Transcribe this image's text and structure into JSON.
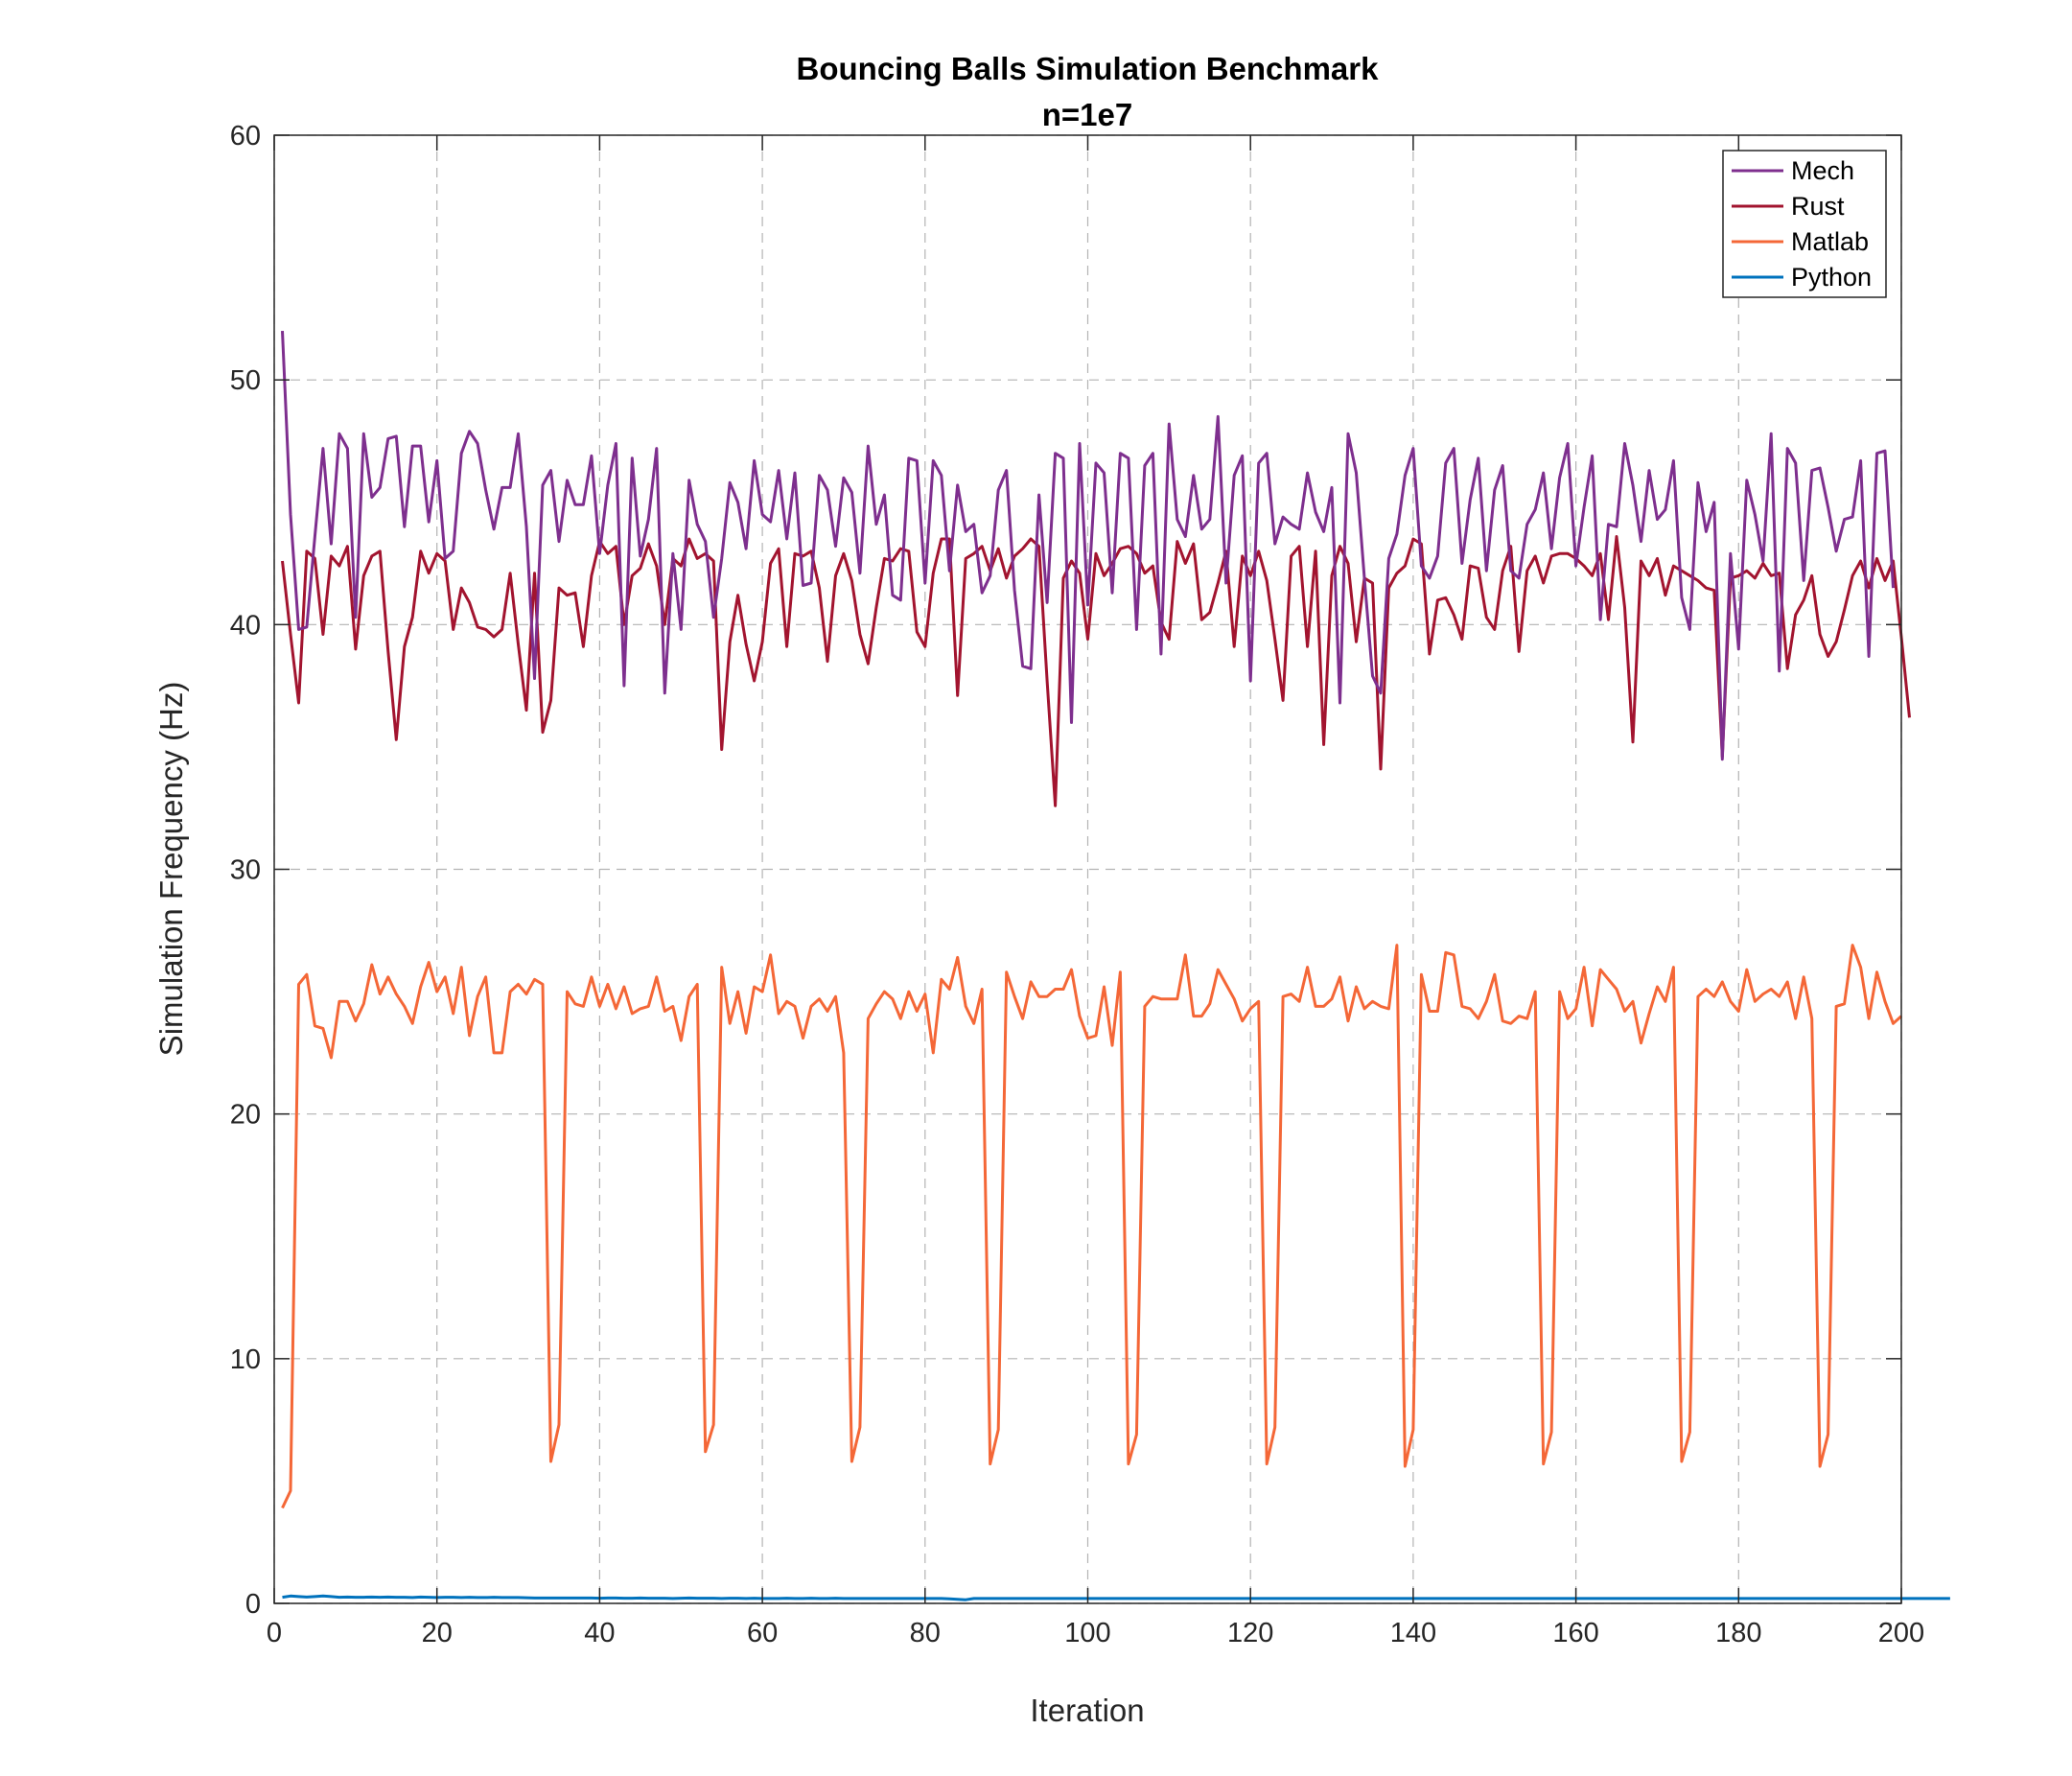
{
  "chart_data": {
    "type": "line",
    "title": "Bouncing Balls Simulation Benchmark",
    "subtitle": "n=1e7",
    "xlabel": "Iteration",
    "ylabel": "Simulation Frequency (Hz)",
    "xlim": [
      0,
      200
    ],
    "ylim": [
      0,
      60
    ],
    "xticks": [
      0,
      20,
      40,
      60,
      80,
      100,
      120,
      140,
      160,
      180,
      200
    ],
    "yticks": [
      0,
      10,
      20,
      30,
      40,
      50,
      60
    ],
    "grid": true,
    "legend_position": "top-right",
    "series": [
      {
        "name": "Mech",
        "color": "#7E2F8E",
        "values": [
          52.0,
          44.5,
          39.8,
          39.9,
          43.6,
          47.2,
          43.3,
          47.8,
          47.2,
          40.3,
          47.8,
          45.2,
          45.6,
          47.6,
          47.7,
          44.0,
          47.3,
          47.3,
          44.2,
          46.7,
          42.7,
          43.0,
          47.0,
          47.9,
          47.4,
          45.5,
          43.9,
          45.6,
          45.6,
          47.8,
          44.0,
          37.8,
          45.7,
          46.3,
          43.4,
          45.9,
          44.9,
          44.9,
          46.9,
          42.9,
          45.7,
          47.4,
          37.5,
          46.8,
          42.8,
          44.3,
          47.2,
          37.2,
          42.9,
          39.8,
          45.9,
          44.1,
          43.4,
          40.3,
          42.7,
          45.8,
          45.0,
          43.1,
          46.7,
          44.5,
          44.2,
          46.3,
          43.5,
          46.2,
          41.6,
          41.7,
          46.1,
          45.5,
          43.2,
          46.0,
          45.4,
          42.1,
          47.3,
          44.1,
          45.3,
          41.2,
          41.0,
          46.8,
          46.7,
          41.7,
          46.7,
          46.1,
          42.2,
          45.7,
          43.8,
          44.1,
          41.3,
          42.0,
          45.5,
          46.3,
          41.4,
          38.3,
          38.2,
          45.3,
          40.9,
          47.0,
          46.8,
          36.0,
          47.4,
          40.8,
          46.6,
          46.2,
          41.3,
          47.0,
          46.8,
          39.8,
          46.5,
          47.0,
          38.8,
          48.2,
          44.3,
          43.6,
          46.1,
          43.9,
          44.3,
          48.5,
          41.7,
          46.1,
          46.9,
          37.7,
          46.6,
          47.0,
          43.3,
          44.4,
          44.1,
          43.9,
          46.2,
          44.6,
          43.8,
          45.6,
          36.8,
          47.8,
          46.2,
          41.9,
          37.9,
          37.2,
          42.7,
          43.7,
          46.1,
          47.2,
          42.4,
          41.9,
          42.8,
          46.6,
          47.2,
          42.5,
          45.1,
          46.8,
          42.2,
          45.5,
          46.5,
          42.2,
          41.9,
          44.1,
          44.7,
          46.2,
          43.1,
          46.0,
          47.4,
          42.4,
          44.8,
          46.9,
          40.2,
          44.1,
          44.0,
          47.4,
          45.7,
          43.4,
          46.3,
          44.3,
          44.7,
          46.7,
          41.1,
          39.8,
          45.8,
          43.8,
          45.0,
          34.5,
          42.9,
          39.0,
          45.9,
          44.5,
          42.6,
          47.8,
          38.1,
          47.2,
          46.6,
          41.8,
          46.3,
          46.4,
          44.8,
          43.0,
          44.3,
          44.4,
          46.7,
          38.7,
          47.0,
          47.1,
          41.5
        ]
      },
      {
        "name": "Rust",
        "color": "#A2142F",
        "values": [
          42.6,
          39.6,
          36.8,
          43.0,
          42.7,
          39.6,
          42.8,
          42.4,
          43.2,
          39.0,
          42.0,
          42.8,
          43.0,
          38.9,
          35.3,
          39.1,
          40.3,
          43.0,
          42.1,
          42.9,
          42.6,
          39.8,
          41.5,
          40.9,
          39.9,
          39.8,
          39.5,
          39.8,
          42.1,
          39.2,
          36.5,
          42.1,
          35.6,
          36.9,
          41.5,
          41.2,
          41.3,
          39.1,
          42.0,
          43.4,
          42.9,
          43.2,
          40.0,
          42.0,
          42.3,
          43.3,
          42.4,
          40.0,
          42.7,
          42.4,
          43.5,
          42.7,
          42.9,
          42.6,
          34.9,
          39.3,
          41.2,
          39.2,
          37.7,
          39.3,
          42.5,
          43.1,
          39.1,
          42.9,
          42.8,
          43.0,
          41.5,
          38.5,
          42.0,
          42.9,
          41.8,
          39.6,
          38.4,
          40.7,
          42.7,
          42.6,
          43.1,
          43.0,
          39.7,
          39.1,
          42.1,
          43.5,
          43.5,
          37.1,
          42.7,
          42.9,
          43.2,
          42.2,
          43.1,
          41.9,
          42.8,
          43.1,
          43.5,
          43.2,
          37.7,
          32.6,
          41.9,
          42.6,
          42.1,
          39.4,
          42.9,
          42.0,
          42.5,
          43.1,
          43.2,
          42.9,
          42.1,
          42.4,
          40.1,
          39.4,
          43.4,
          42.5,
          43.3,
          40.2,
          40.5,
          41.7,
          43.0,
          39.1,
          42.8,
          42.0,
          43.0,
          41.8,
          39.4,
          36.9,
          42.8,
          43.2,
          39.1,
          43.0,
          35.1,
          42.0,
          43.2,
          42.5,
          39.3,
          41.9,
          41.7,
          34.1,
          41.5,
          42.1,
          42.4,
          43.5,
          43.3,
          38.8,
          41.0,
          41.1,
          40.4,
          39.4,
          42.4,
          42.3,
          40.3,
          39.8,
          42.2,
          43.2,
          38.9,
          42.2,
          42.8,
          41.7,
          42.8,
          42.9,
          42.9,
          42.7,
          42.4,
          42.0,
          42.9,
          40.2,
          43.6,
          40.7,
          35.2,
          42.6,
          42.0,
          42.7,
          41.2,
          42.4,
          42.2,
          42.0,
          41.8,
          41.5,
          41.4,
          34.6,
          41.9,
          42.0,
          42.2,
          41.9,
          42.5,
          42.0,
          42.1,
          38.2,
          40.4,
          41.0,
          42.0,
          39.6,
          38.7,
          39.3,
          40.6,
          42.0,
          42.6,
          41.5,
          42.7,
          41.8,
          42.6,
          39.5,
          36.2
        ]
      },
      {
        "name": "Matlab",
        "color": "#F46737",
        "values": [
          3.9,
          4.6,
          25.3,
          25.7,
          23.6,
          23.5,
          22.3,
          24.6,
          24.6,
          23.8,
          24.5,
          26.1,
          24.9,
          25.6,
          24.9,
          24.4,
          23.7,
          25.2,
          26.2,
          25.0,
          25.6,
          24.1,
          26.0,
          23.2,
          24.8,
          25.6,
          22.5,
          22.5,
          25.0,
          25.3,
          24.9,
          25.5,
          25.3,
          5.8,
          7.3,
          25.0,
          24.5,
          24.4,
          25.6,
          24.4,
          25.3,
          24.3,
          25.2,
          24.1,
          24.3,
          24.4,
          25.6,
          24.2,
          24.4,
          23.0,
          24.8,
          25.3,
          6.2,
          7.3,
          26.0,
          23.7,
          25.0,
          23.3,
          25.2,
          25.0,
          26.5,
          24.1,
          24.6,
          24.4,
          23.1,
          24.4,
          24.7,
          24.2,
          24.8,
          22.5,
          5.8,
          7.2,
          23.9,
          24.5,
          25.0,
          24.7,
          23.9,
          25.0,
          24.2,
          24.9,
          22.5,
          25.5,
          25.1,
          26.4,
          24.4,
          23.7,
          25.1,
          5.7,
          7.1,
          25.8,
          24.8,
          23.9,
          25.4,
          24.8,
          24.8,
          25.1,
          25.1,
          25.9,
          24.0,
          23.1,
          23.2,
          25.2,
          22.8,
          25.8,
          5.7,
          6.9,
          24.4,
          24.8,
          24.7,
          24.7,
          24.7,
          26.5,
          24.0,
          24.0,
          24.5,
          25.9,
          25.3,
          24.7,
          23.8,
          24.3,
          24.6,
          5.7,
          7.2,
          24.8,
          24.9,
          24.6,
          26.0,
          24.4,
          24.4,
          24.7,
          25.6,
          23.8,
          25.2,
          24.3,
          24.6,
          24.4,
          24.3,
          26.9,
          5.6,
          7.1,
          25.7,
          24.2,
          24.2,
          26.6,
          26.5,
          24.4,
          24.3,
          23.9,
          24.6,
          25.7,
          23.8,
          23.7,
          24.0,
          23.9,
          25.0,
          5.7,
          7.0,
          25.0,
          23.9,
          24.3,
          26.0,
          23.6,
          25.9,
          25.5,
          25.1,
          24.2,
          24.6,
          22.9,
          24.1,
          25.2,
          24.6,
          26.0,
          5.8,
          7.0,
          24.8,
          25.1,
          24.8,
          25.4,
          24.6,
          24.2,
          25.9,
          24.6,
          24.9,
          25.1,
          24.8,
          25.4,
          23.9,
          25.6,
          23.9,
          5.6,
          6.9,
          24.4,
          24.5,
          26.9,
          26.0,
          23.9,
          25.8,
          24.6,
          23.7,
          24.0
        ]
      },
      {
        "name": "Python",
        "color": "#0072BD",
        "values": [
          0.25,
          0.3,
          0.28,
          0.26,
          0.28,
          0.3,
          0.28,
          0.25,
          0.26,
          0.25,
          0.25,
          0.26,
          0.25,
          0.26,
          0.25,
          0.25,
          0.24,
          0.26,
          0.25,
          0.24,
          0.25,
          0.25,
          0.24,
          0.25,
          0.24,
          0.24,
          0.25,
          0.24,
          0.24,
          0.24,
          0.23,
          0.22,
          0.22,
          0.22,
          0.22,
          0.22,
          0.22,
          0.22,
          0.22,
          0.21,
          0.22,
          0.22,
          0.21,
          0.21,
          0.22,
          0.21,
          0.21,
          0.21,
          0.2,
          0.21,
          0.22,
          0.21,
          0.21,
          0.21,
          0.2,
          0.21,
          0.21,
          0.2,
          0.21,
          0.2,
          0.2,
          0.2,
          0.21,
          0.2,
          0.2,
          0.21,
          0.2,
          0.2,
          0.21,
          0.2,
          0.2,
          0.2,
          0.2,
          0.2,
          0.2,
          0.2,
          0.2,
          0.2,
          0.2,
          0.2,
          0.2,
          0.2,
          0.19,
          0.17,
          0.15,
          0.2,
          0.2,
          0.2,
          0.2,
          0.2,
          0.2,
          0.2,
          0.2,
          0.2,
          0.2,
          0.2,
          0.2,
          0.2,
          0.2,
          0.2,
          0.2,
          0.2,
          0.2,
          0.2,
          0.2,
          0.2,
          0.2,
          0.2,
          0.2,
          0.2,
          0.2,
          0.2,
          0.2,
          0.2,
          0.2,
          0.2,
          0.2,
          0.2,
          0.2,
          0.2,
          0.2,
          0.2,
          0.2,
          0.2,
          0.2,
          0.2,
          0.2,
          0.2,
          0.2,
          0.2,
          0.2,
          0.2,
          0.2,
          0.2,
          0.2,
          0.2,
          0.2,
          0.2,
          0.2,
          0.2,
          0.2,
          0.2,
          0.2,
          0.2,
          0.2,
          0.2,
          0.2,
          0.2,
          0.2,
          0.2,
          0.2,
          0.2,
          0.2,
          0.2,
          0.2,
          0.2,
          0.2,
          0.2,
          0.2,
          0.2,
          0.2,
          0.2,
          0.2,
          0.2,
          0.2,
          0.2,
          0.2,
          0.2,
          0.2,
          0.2,
          0.2,
          0.2,
          0.2,
          0.2,
          0.2,
          0.2,
          0.2,
          0.2,
          0.2,
          0.2,
          0.2,
          0.2,
          0.2,
          0.2,
          0.2,
          0.2,
          0.2,
          0.2,
          0.2,
          0.2,
          0.2,
          0.2,
          0.2,
          0.2,
          0.2,
          0.2,
          0.2,
          0.2,
          0.2,
          0.2,
          0.2,
          0.2,
          0.2,
          0.2,
          0.2,
          0.2
        ]
      }
    ]
  }
}
